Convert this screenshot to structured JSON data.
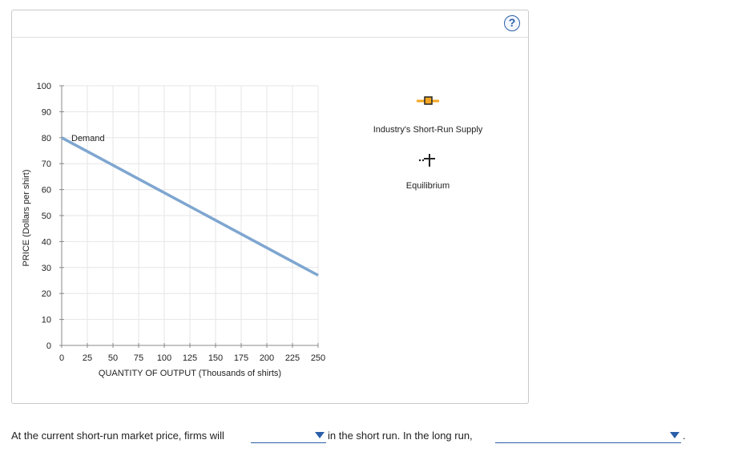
{
  "help": {
    "label": "?"
  },
  "chart_data": {
    "type": "line",
    "xlabel": "QUANTITY OF OUTPUT (Thousands of shirts)",
    "ylabel": "PRICE (Dollars per shirt)",
    "xlim": [
      0,
      250
    ],
    "ylim": [
      0,
      100
    ],
    "x_ticks": [
      0,
      25,
      50,
      75,
      100,
      125,
      150,
      175,
      200,
      225,
      250
    ],
    "y_ticks": [
      0,
      10,
      20,
      30,
      40,
      50,
      60,
      70,
      80,
      90,
      100
    ],
    "grid": true,
    "series": [
      {
        "name": "Demand",
        "x": [
          0,
          250
        ],
        "y": [
          80,
          27
        ],
        "color": "#7ea6d0"
      }
    ],
    "legend": {
      "placement": "right",
      "items": [
        {
          "label": "Industry's Short-Run Supply",
          "icon": "orange-square-marker-icon",
          "color": "#f5a623"
        },
        {
          "label": "Equilibrium",
          "icon": "black-cross-marker-icon",
          "color": "#222222"
        }
      ]
    }
  },
  "question": {
    "part1": "At the current short-run market price, firms will",
    "part2": "in the short run. In the long run,",
    "part3": ".",
    "dropdown1_value": "",
    "dropdown2_value": ""
  }
}
